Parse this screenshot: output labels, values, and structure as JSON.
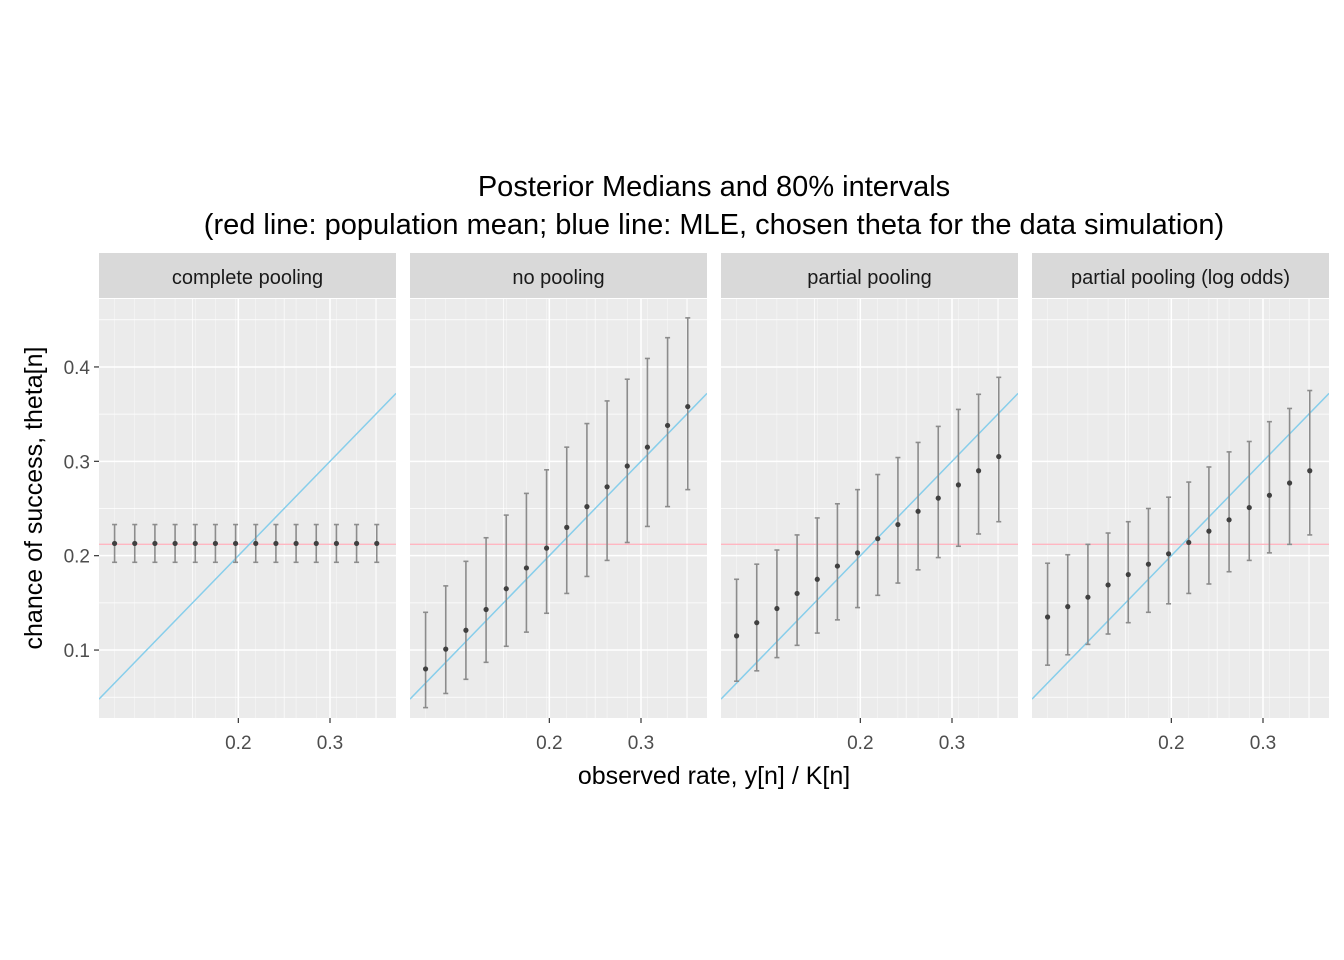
{
  "chart_data": {
    "type": "scatter",
    "title": "Posterior Medians and 80% intervals",
    "subtitle": "(red line: population mean;  blue line: MLE, chosen theta for the data simulation)",
    "xlabel": "observed rate, y[n] / K[n]",
    "ylabel": "chance of success, theta[n]",
    "x_ticks": [
      0.2,
      0.3
    ],
    "x_tick_labels": [
      "0.2",
      "0.3"
    ],
    "y_ticks": [
      0.1,
      0.2,
      0.3,
      0.4
    ],
    "y_tick_labels": [
      "0.1",
      "0.2",
      "0.3",
      "0.4"
    ],
    "xlim": [
      0.048,
      0.372
    ],
    "ylim": [
      0.028,
      0.472
    ],
    "grid": true,
    "reference_lines": {
      "population_mean": {
        "y": 0.212,
        "color": "#ffb6c1"
      },
      "mle_identity": {
        "slope": 1,
        "intercept": 0,
        "color": "#87ceeb"
      }
    },
    "colors": {
      "panel_bg": "#ebebeb",
      "strip_bg": "#d9d9d9",
      "grid_major": "#ffffff",
      "point": "#404040",
      "errorbar": "#8c8c8c"
    },
    "x": [
      0.065,
      0.087,
      0.109,
      0.131,
      0.153,
      0.175,
      0.197,
      0.219,
      0.241,
      0.263,
      0.285,
      0.307,
      0.329,
      0.351
    ],
    "panels": [
      {
        "name": "complete pooling",
        "median": [
          0.213,
          0.213,
          0.213,
          0.213,
          0.213,
          0.213,
          0.213,
          0.213,
          0.213,
          0.213,
          0.213,
          0.213,
          0.213,
          0.213
        ],
        "lower": [
          0.193,
          0.193,
          0.193,
          0.193,
          0.193,
          0.193,
          0.193,
          0.193,
          0.193,
          0.193,
          0.193,
          0.193,
          0.193,
          0.193
        ],
        "upper": [
          0.233,
          0.233,
          0.233,
          0.233,
          0.233,
          0.233,
          0.233,
          0.233,
          0.233,
          0.233,
          0.233,
          0.233,
          0.233,
          0.233
        ]
      },
      {
        "name": "no pooling",
        "median": [
          0.08,
          0.101,
          0.121,
          0.143,
          0.165,
          0.187,
          0.208,
          0.23,
          0.252,
          0.273,
          0.295,
          0.315,
          0.338,
          0.358
        ],
        "lower": [
          0.039,
          0.054,
          0.069,
          0.087,
          0.104,
          0.119,
          0.139,
          0.16,
          0.178,
          0.195,
          0.214,
          0.231,
          0.252,
          0.27
        ],
        "upper": [
          0.14,
          0.168,
          0.194,
          0.219,
          0.243,
          0.266,
          0.291,
          0.315,
          0.34,
          0.364,
          0.387,
          0.409,
          0.431,
          0.452
        ]
      },
      {
        "name": "partial pooling",
        "median": [
          0.115,
          0.129,
          0.144,
          0.16,
          0.175,
          0.189,
          0.203,
          0.218,
          0.233,
          0.247,
          0.261,
          0.275,
          0.29,
          0.305
        ],
        "lower": [
          0.067,
          0.078,
          0.092,
          0.105,
          0.118,
          0.132,
          0.145,
          0.158,
          0.171,
          0.185,
          0.198,
          0.21,
          0.223,
          0.236
        ],
        "upper": [
          0.175,
          0.191,
          0.206,
          0.222,
          0.24,
          0.255,
          0.27,
          0.286,
          0.304,
          0.32,
          0.337,
          0.355,
          0.371,
          0.389
        ]
      },
      {
        "name": "partial pooling (log odds)",
        "median": [
          0.135,
          0.146,
          0.156,
          0.169,
          0.18,
          0.191,
          0.202,
          0.214,
          0.226,
          0.238,
          0.251,
          0.264,
          0.277,
          0.29
        ],
        "lower": [
          0.084,
          0.095,
          0.106,
          0.117,
          0.129,
          0.14,
          0.149,
          0.16,
          0.17,
          0.183,
          0.195,
          0.203,
          0.212,
          0.222
        ],
        "upper": [
          0.192,
          0.201,
          0.212,
          0.224,
          0.236,
          0.25,
          0.262,
          0.278,
          0.294,
          0.31,
          0.321,
          0.342,
          0.356,
          0.375
        ]
      }
    ]
  }
}
